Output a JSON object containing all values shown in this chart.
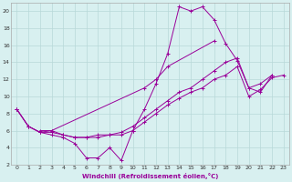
{
  "xlabel": "Windchill (Refroidissement éolien,°C)",
  "background_color": "#d8f0f0",
  "grid_color": "#b8d8d8",
  "line_color": "#990099",
  "xlim": [
    -0.5,
    23.5
  ],
  "ylim": [
    2,
    21
  ],
  "xticks": [
    0,
    1,
    2,
    3,
    4,
    5,
    6,
    7,
    8,
    9,
    10,
    11,
    12,
    13,
    14,
    15,
    16,
    17,
    18,
    19,
    20,
    21,
    22,
    23
  ],
  "yticks": [
    2,
    4,
    6,
    8,
    10,
    12,
    14,
    16,
    18,
    20
  ],
  "series": [
    [
      [
        0,
        1,
        2,
        3,
        4,
        5,
        6,
        7,
        8,
        9,
        10,
        11,
        12,
        13,
        14,
        15,
        16,
        17,
        18,
        19,
        20,
        21,
        22
      ],
      [
        8.5,
        6.5,
        5.8,
        5.5,
        5.2,
        4.5,
        2.8,
        2.8,
        4.0,
        2.5,
        6.0,
        8.5,
        11.5,
        15.0,
        20.5,
        20.0,
        20.5,
        19.0,
        16.2,
        14.2,
        11.0,
        10.5,
        12.5
      ]
    ],
    [
      [
        2,
        3,
        11,
        12,
        13,
        17
      ],
      [
        6.0,
        6.0,
        11.0,
        12.0,
        13.5,
        16.5
      ]
    ],
    [
      [
        0,
        1,
        2,
        3,
        4,
        5,
        6,
        7,
        8,
        9,
        10,
        11,
        12,
        13,
        14,
        15,
        16,
        17,
        18,
        19,
        20,
        21,
        22
      ],
      [
        8.5,
        6.5,
        5.8,
        6.0,
        5.5,
        5.2,
        5.2,
        5.5,
        5.5,
        5.8,
        6.5,
        7.5,
        8.5,
        9.5,
        10.5,
        11.0,
        12.0,
        13.0,
        14.0,
        14.5,
        11.0,
        11.5,
        12.5
      ]
    ],
    [
      [
        0,
        1,
        2,
        3,
        4,
        5,
        6,
        7,
        8,
        9,
        10,
        11,
        12,
        13,
        14,
        15,
        16,
        17,
        18,
        19,
        20,
        21,
        22,
        23
      ],
      [
        8.5,
        6.5,
        5.8,
        5.8,
        5.5,
        5.2,
        5.2,
        5.2,
        5.5,
        5.5,
        6.0,
        7.0,
        8.0,
        9.0,
        9.8,
        10.5,
        11.0,
        12.0,
        12.5,
        13.5,
        10.0,
        10.8,
        12.2,
        12.5
      ]
    ]
  ]
}
